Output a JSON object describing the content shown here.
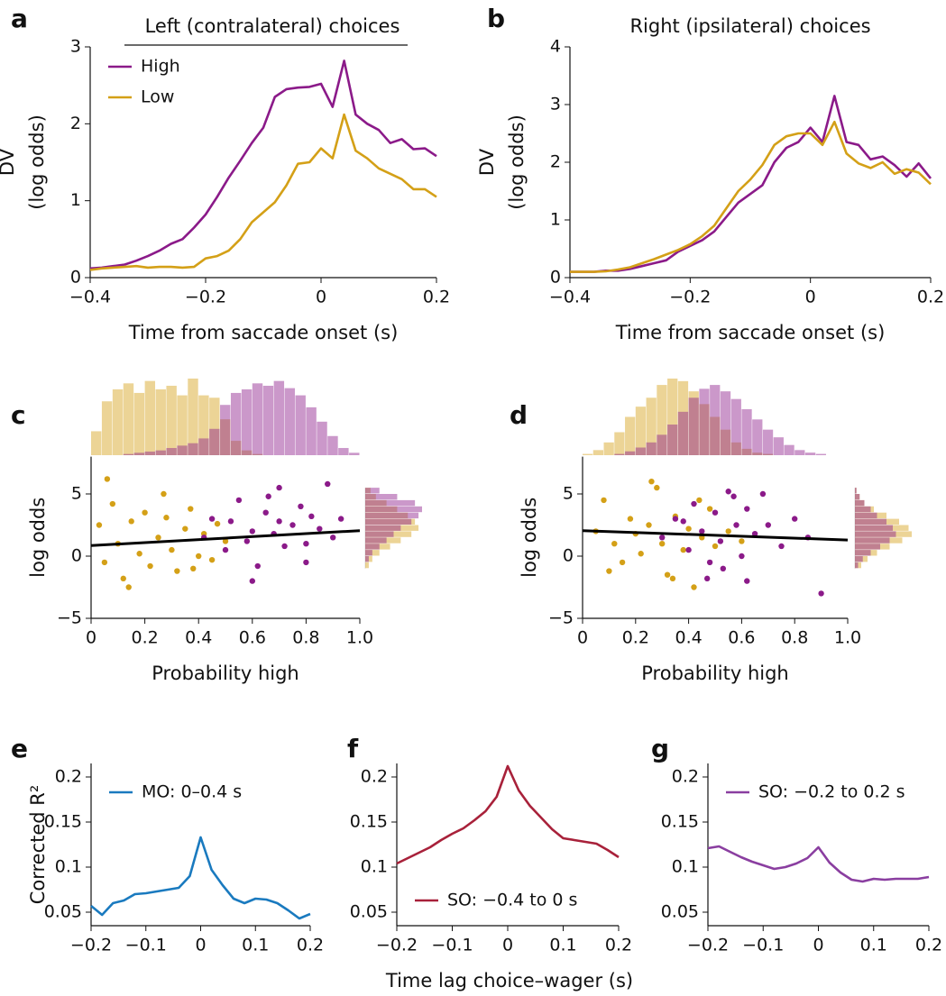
{
  "chart_data": [
    {
      "type": "line",
      "panel": "a",
      "title": "Left (contralateral) choices",
      "xlabel": "Time from saccade onset (s)",
      "ylabel": [
        "DV",
        "(log odds)"
      ],
      "x": [
        -0.4,
        -0.38,
        -0.36,
        -0.34,
        -0.32,
        -0.3,
        -0.28,
        -0.26,
        -0.24,
        -0.22,
        -0.2,
        -0.18,
        -0.16,
        -0.14,
        -0.12,
        -0.1,
        -0.08,
        -0.06,
        -0.04,
        -0.02,
        0,
        0.02,
        0.04,
        0.06,
        0.08,
        0.1,
        0.12,
        0.14,
        0.16,
        0.18,
        0.2
      ],
      "series": [
        {
          "name": "High",
          "color": "#8b1a89",
          "values": [
            0.12,
            0.13,
            0.15,
            0.17,
            0.22,
            0.28,
            0.35,
            0.44,
            0.5,
            0.65,
            0.82,
            1.05,
            1.3,
            1.52,
            1.75,
            1.95,
            2.35,
            2.45,
            2.47,
            2.48,
            2.52,
            2.22,
            2.82,
            2.12,
            2.0,
            1.92,
            1.75,
            1.8,
            1.67,
            1.68,
            1.58
          ]
        },
        {
          "name": "Low",
          "color": "#d4a017",
          "values": [
            0.1,
            0.12,
            0.13,
            0.14,
            0.15,
            0.13,
            0.14,
            0.14,
            0.13,
            0.14,
            0.25,
            0.28,
            0.35,
            0.5,
            0.72,
            0.85,
            0.98,
            1.2,
            1.48,
            1.5,
            1.68,
            1.55,
            2.12,
            1.65,
            1.55,
            1.42,
            1.35,
            1.28,
            1.15,
            1.15,
            1.05
          ]
        }
      ],
      "xlim": [
        -0.4,
        0.2
      ],
      "xticks": [
        {
          "value": -0.4,
          "label": "−0.4"
        },
        {
          "value": -0.2,
          "label": "−0.2"
        },
        0,
        0.2
      ],
      "ylim": [
        0,
        3
      ],
      "yticks": [
        0,
        1,
        2,
        3
      ],
      "legend": "upper left"
    },
    {
      "type": "line",
      "panel": "b",
      "title": "Right (ipsilateral) choices",
      "xlabel": "Time from saccade onset (s)",
      "ylabel": [
        "DV",
        "(log odds)"
      ],
      "x": [
        -0.4,
        -0.38,
        -0.36,
        -0.34,
        -0.32,
        -0.3,
        -0.28,
        -0.26,
        -0.24,
        -0.22,
        -0.2,
        -0.18,
        -0.16,
        -0.14,
        -0.12,
        -0.1,
        -0.08,
        -0.06,
        -0.04,
        -0.02,
        0,
        0.02,
        0.04,
        0.06,
        0.08,
        0.1,
        0.12,
        0.14,
        0.16,
        0.18,
        0.2
      ],
      "series": [
        {
          "name": "High",
          "color": "#8b1a89",
          "values": [
            0.1,
            0.1,
            0.1,
            0.12,
            0.12,
            0.15,
            0.2,
            0.25,
            0.3,
            0.45,
            0.55,
            0.65,
            0.8,
            1.05,
            1.3,
            1.45,
            1.6,
            2.0,
            2.25,
            2.35,
            2.6,
            2.35,
            3.15,
            2.35,
            2.3,
            2.05,
            2.1,
            1.95,
            1.75,
            1.98,
            1.72
          ]
        },
        {
          "name": "Low",
          "color": "#d4a017",
          "values": [
            0.1,
            0.1,
            0.1,
            0.11,
            0.14,
            0.18,
            0.25,
            0.32,
            0.4,
            0.48,
            0.58,
            0.72,
            0.9,
            1.2,
            1.5,
            1.7,
            1.95,
            2.3,
            2.45,
            2.5,
            2.5,
            2.3,
            2.7,
            2.15,
            1.98,
            1.9,
            2.0,
            1.8,
            1.88,
            1.82,
            1.62
          ]
        }
      ],
      "xlim": [
        -0.4,
        0.2
      ],
      "xticks": [
        {
          "value": -0.4,
          "label": "−0.4"
        },
        {
          "value": -0.2,
          "label": "−0.2"
        },
        0,
        0.2
      ],
      "ylim": [
        0,
        4
      ],
      "yticks": [
        0,
        1,
        2,
        3,
        4
      ]
    },
    {
      "type": "scatter",
      "panel": "c",
      "xlabel": "Probability high",
      "ylabel": [
        "log odds"
      ],
      "series": [
        {
          "name": "Low",
          "color": "#d4a017",
          "x": [
            0.03,
            0.05,
            0.08,
            0.1,
            0.12,
            0.15,
            0.18,
            0.2,
            0.22,
            0.25,
            0.27,
            0.3,
            0.32,
            0.35,
            0.37,
            0.4,
            0.42,
            0.45,
            0.47,
            0.5,
            0.06,
            0.14,
            0.28,
            0.38
          ],
          "values": [
            2.5,
            -0.5,
            4.2,
            1.0,
            -1.8,
            2.8,
            0.2,
            3.5,
            -0.8,
            1.5,
            5.0,
            0.5,
            -1.2,
            2.2,
            3.8,
            0.0,
            1.8,
            -0.3,
            2.6,
            1.2,
            6.2,
            -2.5,
            3.1,
            -1.0
          ]
        },
        {
          "name": "High",
          "color": "#8b1a89",
          "x": [
            0.42,
            0.45,
            0.5,
            0.52,
            0.55,
            0.58,
            0.6,
            0.62,
            0.65,
            0.68,
            0.7,
            0.72,
            0.75,
            0.78,
            0.8,
            0.82,
            0.85,
            0.88,
            0.9,
            0.93,
            0.6,
            0.7,
            0.8,
            0.66
          ],
          "values": [
            1.5,
            3.0,
            0.5,
            2.8,
            4.5,
            1.2,
            2.0,
            -0.8,
            3.5,
            1.8,
            5.5,
            0.8,
            2.5,
            4.0,
            1.0,
            3.2,
            2.2,
            5.8,
            1.5,
            3.0,
            -2.0,
            2.8,
            -0.5,
            4.8
          ]
        }
      ],
      "fit": {
        "color": "#000000",
        "x": [
          0,
          1
        ],
        "values": [
          0.85,
          2.05
        ]
      },
      "hist_top": {
        "bins": [
          0,
          0.04,
          0.08,
          0.12,
          0.16,
          0.2,
          0.24,
          0.28,
          0.32,
          0.36,
          0.4,
          0.44,
          0.48,
          0.52,
          0.56,
          0.6,
          0.64,
          0.68,
          0.72,
          0.76,
          0.8,
          0.84,
          0.88,
          0.92,
          0.96,
          1.0
        ],
        "series": [
          {
            "color": "#d4a017",
            "counts": [
              20,
              45,
              55,
              60,
              52,
              62,
              55,
              58,
              50,
              64,
              50,
              48,
              30,
              12,
              4,
              1,
              0,
              0,
              0,
              0,
              0,
              0,
              0,
              0,
              0
            ]
          },
          {
            "color": "#8b1a89",
            "counts": [
              0,
              0,
              0,
              1,
              2,
              3,
              4,
              6,
              8,
              10,
              14,
              22,
              42,
              52,
              55,
              60,
              58,
              62,
              56,
              50,
              40,
              28,
              16,
              6,
              2
            ]
          }
        ]
      },
      "hist_right": {
        "bins": [
          -1,
          -0.5,
          0,
          0.5,
          1,
          1.5,
          2,
          2.5,
          3,
          3.5,
          4,
          4.5,
          5,
          5.5
        ],
        "series": [
          {
            "color": "#d4a017",
            "counts": [
              2,
              4,
              8,
              14,
              20,
              26,
              30,
              28,
              24,
              18,
              12,
              6,
              3
            ]
          },
          {
            "color": "#8b1a89",
            "counts": [
              0,
              2,
              4,
              8,
              12,
              16,
              20,
              26,
              30,
              32,
              28,
              18,
              8
            ]
          }
        ]
      },
      "xlim": [
        0,
        1
      ],
      "xticks": [
        0,
        0.2,
        0.4,
        0.6,
        0.8,
        {
          "value": 1,
          "label": "1.0"
        }
      ],
      "ylim": [
        -5,
        8
      ],
      "yticks": [
        {
          "value": -5,
          "label": "−5"
        },
        0,
        5
      ]
    },
    {
      "type": "scatter",
      "panel": "d",
      "xlabel": "Probability high",
      "ylabel": [
        "log odds"
      ],
      "series": [
        {
          "name": "Low",
          "color": "#d4a017",
          "x": [
            0.05,
            0.08,
            0.12,
            0.15,
            0.18,
            0.2,
            0.22,
            0.25,
            0.28,
            0.3,
            0.32,
            0.35,
            0.38,
            0.4,
            0.42,
            0.45,
            0.48,
            0.5,
            0.55,
            0.1,
            0.26,
            0.34,
            0.44,
            0.6
          ],
          "values": [
            2.0,
            4.5,
            1.0,
            -0.5,
            3.0,
            1.8,
            0.2,
            2.5,
            5.5,
            1.0,
            -1.5,
            3.2,
            0.5,
            2.2,
            -2.5,
            1.5,
            3.8,
            0.8,
            2.0,
            -1.2,
            6.0,
            -1.8,
            4.5,
            1.2
          ]
        },
        {
          "name": "High",
          "color": "#8b1a89",
          "x": [
            0.3,
            0.35,
            0.4,
            0.42,
            0.45,
            0.48,
            0.5,
            0.52,
            0.55,
            0.58,
            0.6,
            0.62,
            0.65,
            0.7,
            0.75,
            0.8,
            0.85,
            0.9,
            0.47,
            0.57,
            0.53,
            0.68,
            0.38,
            0.62
          ],
          "values": [
            1.5,
            3.0,
            0.5,
            4.2,
            2.0,
            -0.5,
            3.5,
            1.2,
            5.2,
            2.5,
            0.0,
            3.8,
            1.8,
            2.5,
            0.8,
            3.0,
            1.5,
            -3.0,
            -1.8,
            4.8,
            -1.0,
            5.0,
            2.8,
            -2.0
          ]
        }
      ],
      "fit": {
        "color": "#000000",
        "x": [
          0,
          1
        ],
        "values": [
          2.05,
          1.3
        ]
      },
      "hist_top": {
        "bins": [
          0,
          0.04,
          0.08,
          0.12,
          0.16,
          0.2,
          0.24,
          0.28,
          0.32,
          0.36,
          0.4,
          0.44,
          0.48,
          0.52,
          0.56,
          0.6,
          0.64,
          0.68,
          0.72,
          0.76,
          0.8,
          0.84,
          0.88,
          0.92,
          0.96,
          1.0
        ],
        "series": [
          {
            "color": "#d4a017",
            "counts": [
              1,
              4,
              10,
              18,
              30,
              38,
              45,
              55,
              60,
              58,
              50,
              40,
              30,
              20,
              10,
              5,
              2,
              1,
              0,
              0,
              0,
              0,
              0,
              0,
              0
            ]
          },
          {
            "color": "#8b1a89",
            "counts": [
              0,
              0,
              0,
              1,
              3,
              6,
              10,
              16,
              24,
              34,
              45,
              52,
              55,
              50,
              44,
              36,
              28,
              20,
              14,
              8,
              4,
              2,
              1,
              0,
              0
            ]
          }
        ]
      },
      "hist_right": {
        "bins": [
          -1,
          -0.5,
          0,
          0.5,
          1,
          1.5,
          2,
          2.5,
          3,
          3.5,
          4,
          4.5,
          5,
          5.5
        ],
        "series": [
          {
            "color": "#d4a017",
            "counts": [
              4,
              8,
              14,
              22,
              30,
              36,
              34,
              28,
              20,
              12,
              6,
              3,
              1
            ]
          },
          {
            "color": "#8b1a89",
            "counts": [
              2,
              5,
              10,
              16,
              22,
              26,
              24,
              20,
              14,
              10,
              6,
              3,
              1
            ]
          }
        ]
      },
      "xlim": [
        0,
        1
      ],
      "xticks": [
        0,
        0.2,
        0.4,
        0.6,
        0.8,
        {
          "value": 1,
          "label": "1.0"
        }
      ],
      "ylim": [
        -5,
        8
      ],
      "yticks": [
        {
          "value": -5,
          "label": "−5"
        },
        0,
        5
      ]
    },
    {
      "type": "line",
      "panel": "e",
      "ylabel": [
        "Corrected R²"
      ],
      "x": [
        -0.2,
        -0.18,
        -0.16,
        -0.14,
        -0.12,
        -0.1,
        -0.08,
        -0.06,
        -0.04,
        -0.02,
        0,
        0.02,
        0.04,
        0.06,
        0.08,
        0.1,
        0.12,
        0.14,
        0.16,
        0.18,
        0.2
      ],
      "series": [
        {
          "name": "MO: 0–0.4 s",
          "color": "#1a7abf",
          "values": [
            0.057,
            0.047,
            0.06,
            0.063,
            0.07,
            0.071,
            0.073,
            0.075,
            0.077,
            0.09,
            0.133,
            0.097,
            0.08,
            0.065,
            0.06,
            0.065,
            0.064,
            0.06,
            0.052,
            0.043,
            0.048
          ]
        }
      ],
      "xlim": [
        -0.2,
        0.2
      ],
      "xticks": [
        {
          "value": -0.2,
          "label": "−0.2"
        },
        {
          "value": -0.1,
          "label": "−0.1"
        },
        0,
        0.1,
        0.2
      ],
      "ylim": [
        0.035,
        0.215
      ],
      "yticks": [
        0.05,
        0.1,
        0.15,
        0.2
      ],
      "legend": "upper left"
    },
    {
      "type": "line",
      "panel": "f",
      "xlabel": "Time lag choice–wager (s)",
      "x": [
        -0.2,
        -0.18,
        -0.16,
        -0.14,
        -0.12,
        -0.1,
        -0.08,
        -0.06,
        -0.04,
        -0.02,
        0,
        0.02,
        0.04,
        0.06,
        0.08,
        0.1,
        0.12,
        0.14,
        0.16,
        0.18,
        0.2
      ],
      "series": [
        {
          "name": "SO: −0.4 to 0 s",
          "color": "#a8213a",
          "values": [
            0.104,
            0.11,
            0.116,
            0.122,
            0.13,
            0.137,
            0.143,
            0.152,
            0.162,
            0.178,
            0.212,
            0.185,
            0.168,
            0.155,
            0.142,
            0.132,
            0.13,
            0.128,
            0.126,
            0.119,
            0.111
          ]
        }
      ],
      "xlim": [
        -0.2,
        0.2
      ],
      "xticks": [
        {
          "value": -0.2,
          "label": "−0.2"
        },
        {
          "value": -0.1,
          "label": "−0.1"
        },
        0,
        0.1,
        0.2
      ],
      "ylim": [
        0.035,
        0.215
      ],
      "yticks": [
        0.05,
        0.1,
        0.15,
        0.2
      ],
      "legend": "lower left"
    },
    {
      "type": "line",
      "panel": "g",
      "x": [
        -0.2,
        -0.18,
        -0.16,
        -0.14,
        -0.12,
        -0.1,
        -0.08,
        -0.06,
        -0.04,
        -0.02,
        0,
        0.02,
        0.04,
        0.06,
        0.08,
        0.1,
        0.12,
        0.14,
        0.16,
        0.18,
        0.2
      ],
      "series": [
        {
          "name": "SO: −0.2 to 0.2 s",
          "color": "#8a3ea0",
          "values": [
            0.121,
            0.123,
            0.117,
            0.111,
            0.106,
            0.102,
            0.098,
            0.1,
            0.104,
            0.11,
            0.122,
            0.105,
            0.094,
            0.086,
            0.084,
            0.087,
            0.086,
            0.087,
            0.087,
            0.087,
            0.089
          ]
        }
      ],
      "xlim": [
        -0.2,
        0.2
      ],
      "xticks": [
        {
          "value": -0.2,
          "label": "−0.2"
        },
        {
          "value": -0.1,
          "label": "−0.1"
        },
        0,
        0.1,
        0.2
      ],
      "ylim": [
        0.035,
        0.215
      ],
      "yticks": [
        0.05,
        0.1,
        0.15,
        0.2
      ],
      "legend": "upper left"
    }
  ]
}
